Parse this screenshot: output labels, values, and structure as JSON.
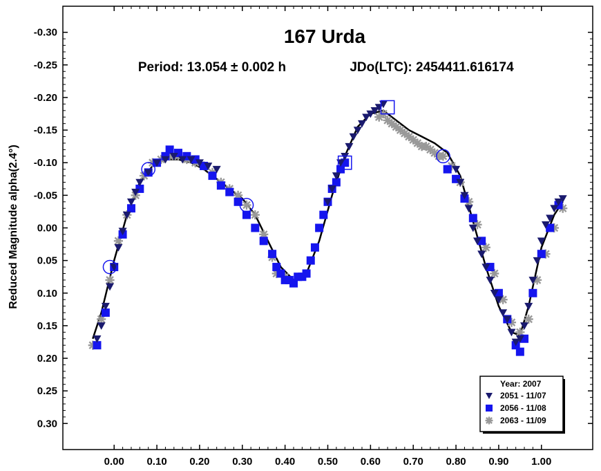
{
  "chart_data": {
    "type": "scatter",
    "title": "167 Urda",
    "period_label": "Period: 13.054 ± 0.002 h",
    "epoch_label": "JDo(LTC): 2454411.616174",
    "ylabel": "Reduced Magnitude alpha(2.4°)",
    "xlabel": "",
    "xlim": [
      -0.12,
      1.12
    ],
    "ylim": [
      0.34,
      -0.34
    ],
    "y_inverted": true,
    "grid": false,
    "x_ticks": [
      0.0,
      0.1,
      0.2,
      0.3,
      0.4,
      0.5,
      0.6,
      0.7,
      0.8,
      0.9,
      1.0
    ],
    "x_tick_labels": [
      "0.00",
      "0.10",
      "0.20",
      "0.30",
      "0.40",
      "0.50",
      "0.60",
      "0.70",
      "0.80",
      "0.90",
      "1.00"
    ],
    "y_ticks": [
      -0.3,
      -0.25,
      -0.2,
      -0.15,
      -0.1,
      -0.05,
      0.0,
      0.05,
      0.1,
      0.15,
      0.2,
      0.25,
      0.3
    ],
    "y_tick_labels": [
      "-0.30",
      "-0.25",
      "-0.20",
      "-0.15",
      "-0.10",
      "-0.05",
      "0.00",
      "0.05",
      "0.10",
      "0.15",
      "0.20",
      "0.25",
      "0.30"
    ],
    "legend": {
      "position": "bottom-right",
      "title": "Year: 2007",
      "entries": [
        {
          "label": "2051 - 11/07",
          "marker": "triangle-down",
          "color": "#1a1a6e"
        },
        {
          "label": "2056 - 11/08",
          "marker": "square",
          "color": "#1515ee"
        },
        {
          "label": "2063 - 11/09",
          "marker": "asterisk",
          "color": "#999999"
        }
      ]
    },
    "fit_curve": {
      "color": "#000000",
      "x": [
        -0.05,
        -0.03,
        0.0,
        0.03,
        0.06,
        0.09,
        0.12,
        0.15,
        0.18,
        0.21,
        0.24,
        0.27,
        0.3,
        0.33,
        0.36,
        0.39,
        0.42,
        0.45,
        0.48,
        0.51,
        0.54,
        0.57,
        0.6,
        0.63,
        0.66,
        0.69,
        0.72,
        0.75,
        0.78,
        0.81,
        0.84,
        0.87,
        0.9,
        0.93,
        0.95,
        0.97,
        1.0,
        1.03,
        1.05
      ],
      "y": [
        0.17,
        0.13,
        0.05,
        -0.02,
        -0.07,
        -0.095,
        -0.105,
        -0.105,
        -0.1,
        -0.09,
        -0.075,
        -0.06,
        -0.045,
        -0.02,
        0.02,
        0.06,
        0.08,
        0.07,
        0.02,
        -0.05,
        -0.11,
        -0.155,
        -0.175,
        -0.18,
        -0.165,
        -0.15,
        -0.14,
        -0.13,
        -0.115,
        -0.08,
        -0.01,
        0.06,
        0.12,
        0.16,
        0.165,
        0.12,
        0.03,
        -0.02,
        -0.04
      ]
    },
    "series": [
      {
        "name": "2051 - 11/07",
        "marker": "triangle-down",
        "color": "#1a1a6e",
        "x": [
          -0.04,
          -0.03,
          -0.02,
          -0.01,
          0.0,
          0.01,
          0.02,
          0.03,
          0.04,
          0.05,
          0.06,
          0.08,
          0.1,
          0.12,
          0.14,
          0.16,
          0.18,
          0.2,
          0.22,
          0.24,
          0.5,
          0.51,
          0.52,
          0.53,
          0.54,
          0.55,
          0.56,
          0.57,
          0.58,
          0.59,
          0.6,
          0.61,
          0.62,
          0.63,
          0.8,
          0.81,
          0.82,
          0.83,
          0.84,
          0.85,
          0.86,
          0.87,
          0.88,
          0.89,
          0.9,
          0.91,
          0.92,
          0.93,
          0.94,
          0.95,
          0.96,
          0.97,
          0.98,
          0.99,
          1.0,
          1.01,
          1.02,
          1.03,
          1.04,
          1.05
        ],
        "y": [
          0.17,
          0.15,
          0.12,
          0.09,
          0.06,
          0.03,
          0.005,
          -0.02,
          -0.04,
          -0.055,
          -0.07,
          -0.085,
          -0.1,
          -0.105,
          -0.11,
          -0.105,
          -0.105,
          -0.1,
          -0.095,
          -0.09,
          -0.04,
          -0.06,
          -0.08,
          -0.1,
          -0.11,
          -0.125,
          -0.14,
          -0.15,
          -0.16,
          -0.17,
          -0.175,
          -0.18,
          -0.185,
          -0.19,
          -0.09,
          -0.07,
          -0.05,
          -0.03,
          0.0,
          0.02,
          0.04,
          0.06,
          0.08,
          0.1,
          0.11,
          0.13,
          0.14,
          0.16,
          0.175,
          0.17,
          0.15,
          0.12,
          0.08,
          0.05,
          0.02,
          -0.005,
          -0.015,
          -0.03,
          -0.04,
          -0.045
        ]
      },
      {
        "name": "2056 - 11/08",
        "marker": "square",
        "color": "#1515ee",
        "x": [
          -0.04,
          -0.02,
          0.0,
          0.02,
          0.04,
          0.06,
          0.08,
          0.1,
          0.12,
          0.13,
          0.15,
          0.17,
          0.19,
          0.21,
          0.23,
          0.25,
          0.27,
          0.29,
          0.31,
          0.33,
          0.35,
          0.37,
          0.38,
          0.39,
          0.4,
          0.41,
          0.42,
          0.43,
          0.44,
          0.45,
          0.46,
          0.47,
          0.48,
          0.49,
          0.5,
          0.51,
          0.52,
          0.53,
          0.54,
          0.78,
          0.8,
          0.82,
          0.84,
          0.86,
          0.88,
          0.9,
          0.92,
          0.94,
          0.95,
          0.96,
          0.98,
          1.0,
          1.02,
          1.04
        ],
        "y": [
          0.18,
          0.13,
          0.06,
          0.01,
          -0.03,
          -0.06,
          -0.085,
          -0.1,
          -0.11,
          -0.12,
          -0.115,
          -0.11,
          -0.105,
          -0.095,
          -0.08,
          -0.065,
          -0.055,
          -0.04,
          -0.02,
          0.0,
          0.02,
          0.04,
          0.06,
          0.07,
          0.08,
          0.08,
          0.085,
          0.075,
          0.075,
          0.07,
          0.05,
          0.03,
          0.0,
          -0.02,
          -0.04,
          -0.06,
          -0.07,
          -0.09,
          -0.1,
          -0.09,
          -0.075,
          -0.045,
          -0.015,
          0.02,
          0.06,
          0.1,
          0.14,
          0.18,
          0.19,
          0.17,
          0.1,
          0.04,
          0.0,
          -0.035
        ]
      },
      {
        "name": "2063 - 11/09",
        "marker": "asterisk",
        "color": "#999999",
        "x": [
          -0.05,
          -0.03,
          -0.01,
          0.01,
          0.03,
          0.05,
          0.07,
          0.09,
          0.11,
          0.13,
          0.15,
          0.17,
          0.19,
          0.21,
          0.23,
          0.25,
          0.27,
          0.29,
          0.31,
          0.33,
          0.35,
          0.37,
          0.38,
          0.4,
          0.62,
          0.63,
          0.64,
          0.65,
          0.66,
          0.67,
          0.68,
          0.69,
          0.7,
          0.71,
          0.72,
          0.73,
          0.74,
          0.75,
          0.76,
          0.77,
          0.79,
          0.81,
          0.83,
          0.85,
          0.87,
          0.89,
          0.91,
          0.93,
          0.95,
          0.97,
          0.99,
          1.01,
          1.03,
          1.05
        ],
        "y": [
          0.18,
          0.14,
          0.08,
          0.02,
          -0.02,
          -0.05,
          -0.08,
          -0.1,
          -0.105,
          -0.11,
          -0.11,
          -0.105,
          -0.1,
          -0.095,
          -0.085,
          -0.07,
          -0.06,
          -0.05,
          -0.035,
          -0.02,
          0.01,
          0.045,
          0.07,
          0.075,
          -0.17,
          -0.175,
          -0.165,
          -0.16,
          -0.155,
          -0.15,
          -0.145,
          -0.14,
          -0.135,
          -0.13,
          -0.125,
          -0.125,
          -0.12,
          -0.115,
          -0.11,
          -0.11,
          -0.095,
          -0.07,
          -0.04,
          -0.005,
          0.03,
          0.07,
          0.11,
          0.145,
          0.16,
          0.14,
          0.08,
          0.04,
          0.0,
          -0.03
        ]
      }
    ],
    "highlight_markers": [
      {
        "marker": "circle-open",
        "color": "#1515ee",
        "x": -0.01,
        "y": 0.06
      },
      {
        "marker": "circle-open",
        "color": "#1515ee",
        "x": 0.77,
        "y": -0.11
      },
      {
        "marker": "square-open",
        "color": "#1515ee",
        "x": 0.54,
        "y": -0.1
      },
      {
        "marker": "square-open",
        "color": "#1515ee",
        "x": 0.64,
        "y": -0.185
      },
      {
        "marker": "circle-open",
        "color": "#1515ee",
        "x": 0.31,
        "y": -0.035
      },
      {
        "marker": "circle-open",
        "color": "#1515ee",
        "x": 0.08,
        "y": -0.09
      }
    ]
  }
}
